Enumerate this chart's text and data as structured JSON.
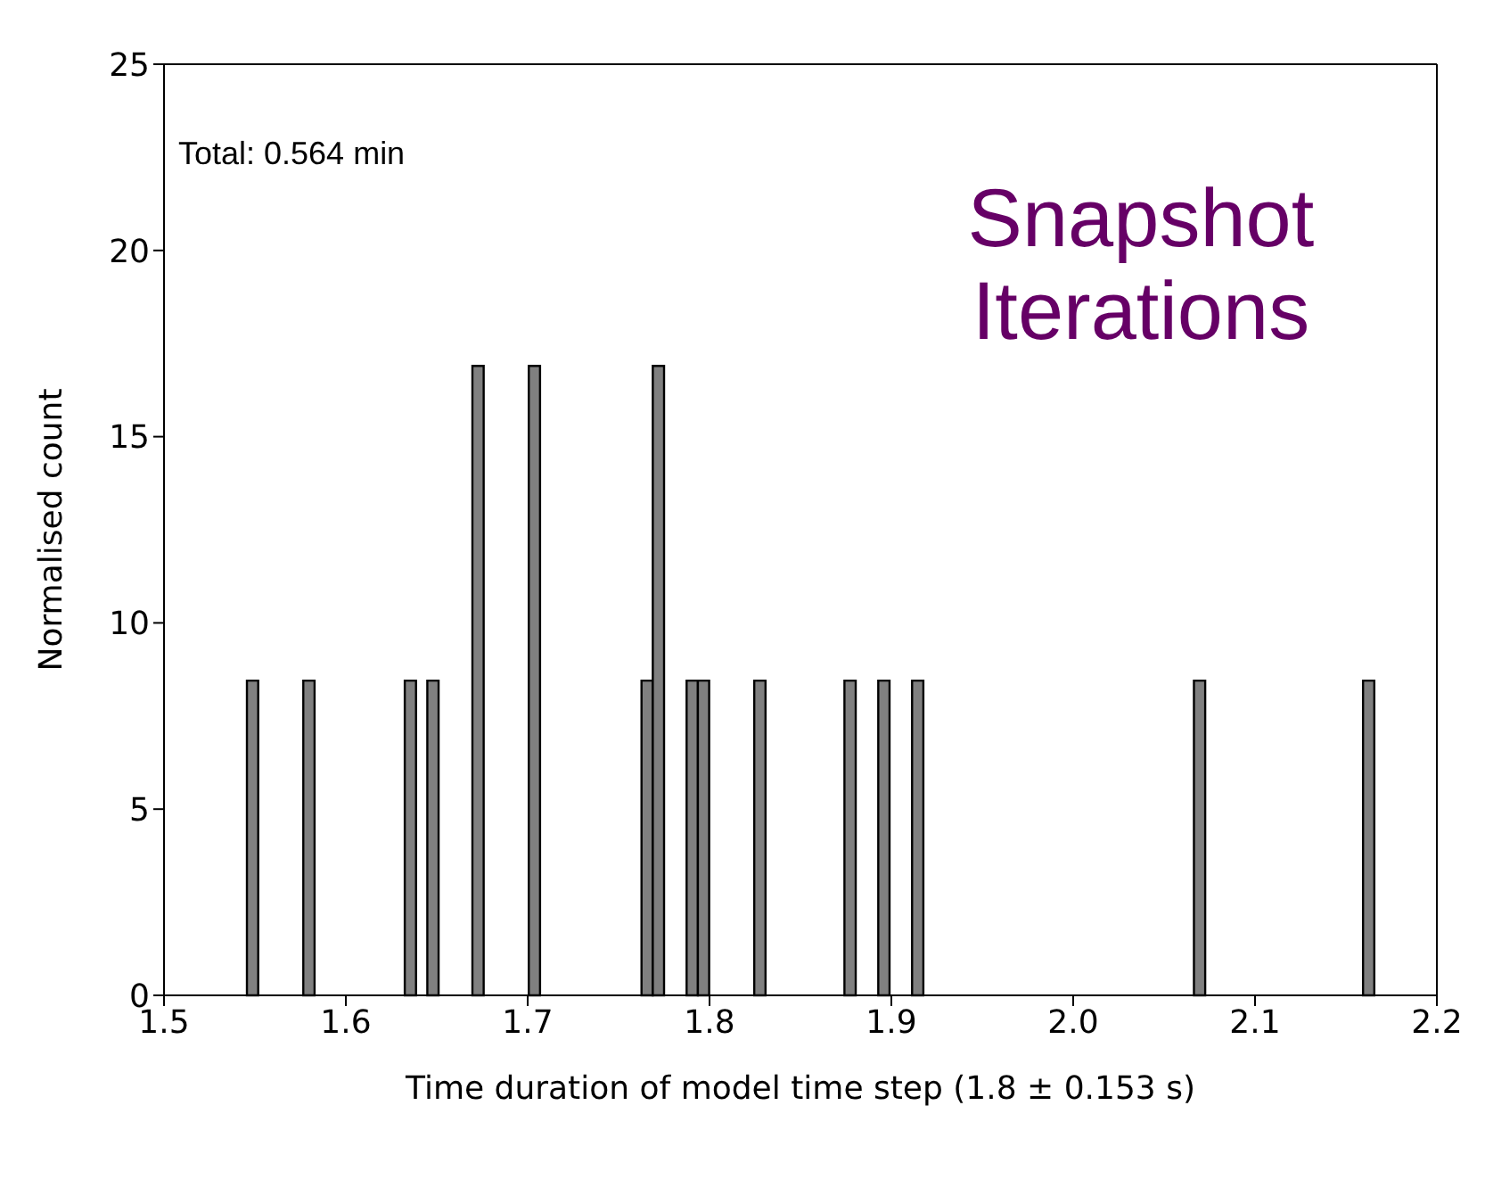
{
  "chart_data": {
    "type": "histogram",
    "xlabel": "Time duration of model time step (1.8 ± 0.153 s)",
    "ylabel": "Normalised count",
    "annotations": [
      "Total: 0.564 min",
      "Snapshot Iterations"
    ],
    "bins": [
      1.5456,
      1.5518,
      1.5766,
      1.5828,
      1.6324,
      1.6386,
      1.6448,
      1.651,
      1.6696,
      1.6758,
      1.7006,
      1.7068,
      1.7626,
      1.7688,
      1.775,
      1.7874,
      1.7936,
      1.7998,
      1.8246,
      1.8308,
      1.8742,
      1.8804,
      1.8928,
      1.899,
      1.9114,
      1.9176,
      2.0664,
      2.0726,
      2.1594,
      2.1656
    ],
    "values": [
      8.45,
      0,
      8.45,
      0,
      8.45,
      0,
      8.45,
      0,
      16.9,
      0,
      16.9,
      0,
      8.45,
      16.9,
      0,
      8.45,
      8.45,
      0,
      8.45,
      0,
      8.45,
      0,
      8.45,
      0,
      8.45,
      0,
      8.45,
      0,
      8.45
    ],
    "color": "#808080",
    "xlim": [
      1.5,
      2.2
    ],
    "xticks": [
      1.5,
      1.6,
      1.7,
      1.8,
      1.9,
      {
        "value": 2.0,
        "label": "2.0"
      },
      2.1,
      2.2
    ],
    "ylim": [
      0,
      25
    ],
    "yticks": [
      0,
      5,
      10,
      15,
      20,
      25
    ],
    "grid": false
  }
}
